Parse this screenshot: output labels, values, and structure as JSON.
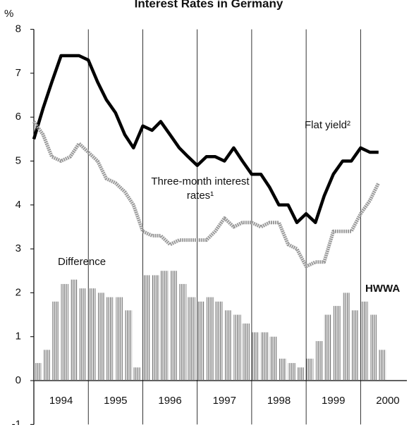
{
  "chart_data": {
    "type": "line",
    "title": "Interest Rates in Germany",
    "y_unit": "%",
    "source": "HWWA",
    "x": [
      1994.0,
      1994.17,
      1994.33,
      1994.5,
      1994.67,
      1994.83,
      1995.0,
      1995.17,
      1995.33,
      1995.5,
      1995.67,
      1995.83,
      1996.0,
      1996.17,
      1996.33,
      1996.5,
      1996.67,
      1996.83,
      1997.0,
      1997.17,
      1997.33,
      1997.5,
      1997.67,
      1997.83,
      1998.0,
      1998.17,
      1998.33,
      1998.5,
      1998.67,
      1998.83,
      1999.0,
      1999.17,
      1999.33,
      1999.5,
      1999.67,
      1999.83,
      2000.0,
      2000.17,
      2000.33
    ],
    "series": [
      {
        "name": "Flat yield²",
        "type": "line",
        "color": "#000000",
        "values": [
          5.5,
          6.2,
          6.8,
          7.4,
          7.4,
          7.4,
          7.3,
          6.8,
          6.4,
          6.1,
          5.6,
          5.3,
          5.8,
          5.7,
          5.9,
          5.6,
          5.3,
          5.1,
          4.9,
          5.1,
          5.1,
          5.0,
          5.3,
          5.0,
          4.7,
          4.7,
          4.4,
          4.0,
          4.0,
          3.6,
          3.8,
          3.6,
          4.2,
          4.7,
          5.0,
          5.0,
          5.3,
          5.2,
          5.2
        ]
      },
      {
        "name": "Three-month interest rates¹",
        "type": "line",
        "color": "#9a9a9a",
        "values": [
          5.9,
          5.6,
          5.1,
          5.0,
          5.1,
          5.4,
          5.2,
          5.0,
          4.6,
          4.5,
          4.3,
          4.0,
          3.4,
          3.3,
          3.3,
          3.1,
          3.2,
          3.2,
          3.2,
          3.2,
          3.4,
          3.7,
          3.5,
          3.6,
          3.6,
          3.5,
          3.6,
          3.6,
          3.1,
          3.0,
          2.6,
          2.7,
          2.7,
          3.4,
          3.4,
          3.4,
          3.8,
          4.1,
          4.5
        ]
      },
      {
        "name": "Difference",
        "type": "bar",
        "color": "#666666",
        "values": [
          0.4,
          0.7,
          1.8,
          2.2,
          2.3,
          2.1,
          2.1,
          2.0,
          1.9,
          1.9,
          1.6,
          0.3,
          2.4,
          2.4,
          2.5,
          2.5,
          2.2,
          1.9,
          1.8,
          1.9,
          1.8,
          1.6,
          1.5,
          1.3,
          1.1,
          1.1,
          1.0,
          0.5,
          0.4,
          0.3,
          0.5,
          0.9,
          1.5,
          1.7,
          2.0,
          1.6,
          1.8,
          1.5,
          0.7
        ]
      }
    ],
    "xlim": [
      1994,
      2000.85
    ],
    "xticks": [
      {
        "value": 1994,
        "label": "1994"
      },
      {
        "value": 1995,
        "label": "1995"
      },
      {
        "value": 1996,
        "label": "1996"
      },
      {
        "value": 1997,
        "label": "1997"
      },
      {
        "value": 1998,
        "label": "1998"
      },
      {
        "value": 1999,
        "label": "1999"
      },
      {
        "value": 2000,
        "label": "2000"
      }
    ],
    "ylim": [
      -1,
      8
    ],
    "yticks": [
      -1,
      0,
      1,
      2,
      3,
      4,
      5,
      6,
      7,
      8
    ],
    "grid": true
  }
}
